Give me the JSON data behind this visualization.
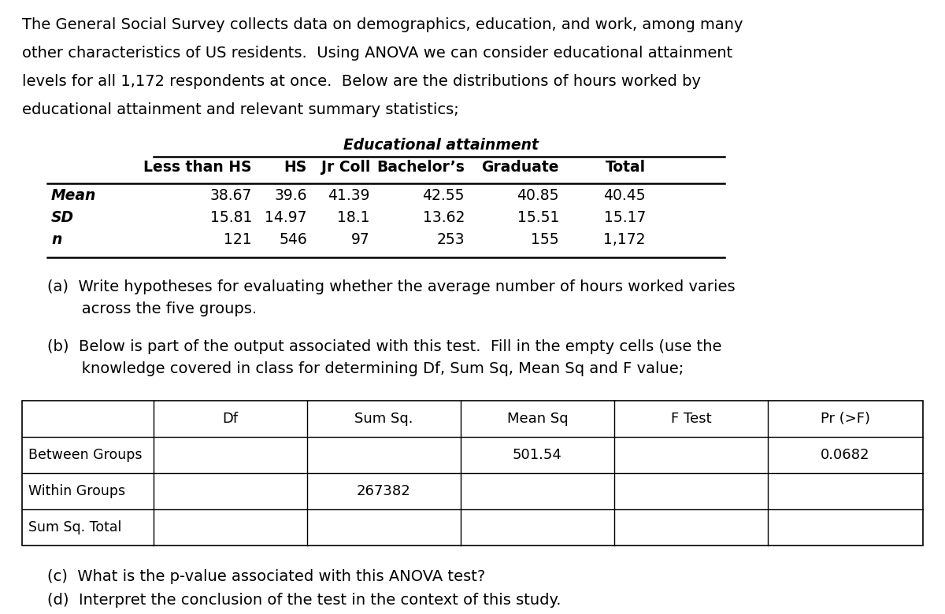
{
  "background_color": "#ffffff",
  "intro_text": [
    "The General Social Survey collects data on demographics, education, and work, among many",
    "other characteristics of US residents.  Using ANOVA we can consider educational attainment",
    "levels for all 1,172 respondents at once.  Below are the distributions of hours worked by",
    "educational attainment and relevant summary statistics;"
  ],
  "table1_header_italic": "Educational attainment",
  "table1_col_headers": [
    "Less than HS",
    "HS",
    "Jr Coll",
    "Bachelor’s",
    "Graduate",
    "Total"
  ],
  "table1_row_labels": [
    "Mean",
    "SD",
    "n"
  ],
  "table1_data": [
    [
      "38.67",
      "39.6",
      "41.39",
      "42.55",
      "40.85",
      "40.45"
    ],
    [
      "15.81",
      "14.97",
      "18.1",
      "13.62",
      "15.51",
      "15.17"
    ],
    [
      "121",
      "546",
      "97",
      "253",
      "155",
      "1,172"
    ]
  ],
  "part_a_lines": [
    "(a)  Write hypotheses for evaluating whether the average number of hours worked varies",
    "       across the five groups."
  ],
  "part_b_lines": [
    "(b)  Below is part of the output associated with this test.  Fill in the empty cells (use the",
    "       knowledge covered in class for determining Df, Sum Sq, Mean Sq and F value;"
  ],
  "table2_col_headers": [
    "Df",
    "Sum Sq.",
    "Mean Sq",
    "F Test",
    "Pr (>F)"
  ],
  "table2_row_labels": [
    "Between Groups",
    "Within Groups",
    "Sum Sq. Total"
  ],
  "table2_data": [
    [
      "",
      "",
      "501.54",
      "",
      "0.0682"
    ],
    [
      "",
      "267382",
      "",
      "",
      ""
    ],
    [
      "",
      "",
      "",
      "",
      ""
    ]
  ],
  "part_c_text": "(c)  What is the p-value associated with this ANOVA test?",
  "part_d_text": "(d)  Interpret the conclusion of the test in the context of this study.",
  "fs_body": 14.0,
  "fs_table1": 13.5,
  "fs_table2": 13.0
}
